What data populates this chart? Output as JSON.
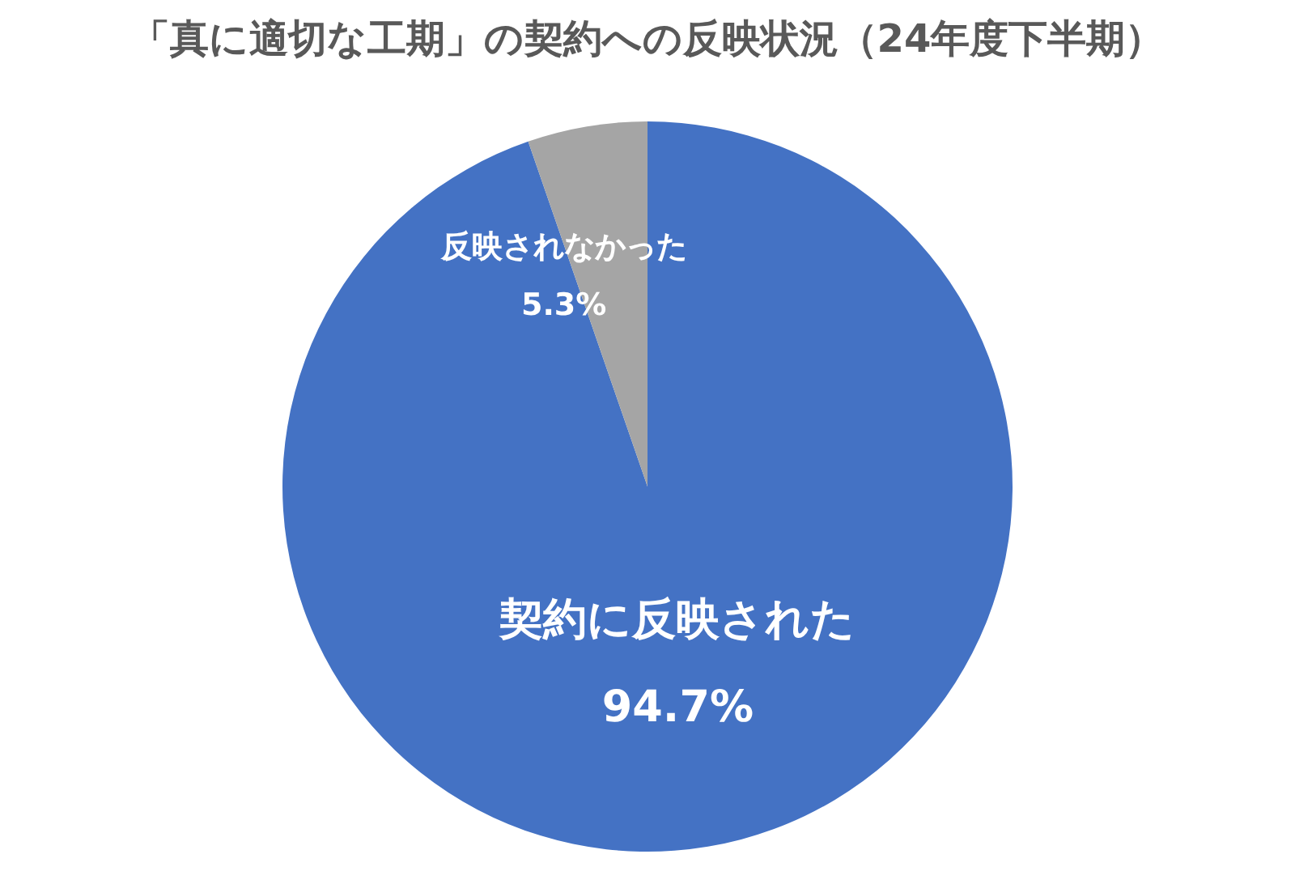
{
  "chart_data": {
    "type": "pie",
    "title": "「真に適切な工期」の契約への反映状況（24年度下半期）",
    "categories": [
      "契約に反映された",
      "反映されなかった"
    ],
    "values": [
      94.7,
      5.3
    ],
    "colors": [
      "#4472c4",
      "#a5a5a5"
    ],
    "value_labels": [
      "94.7%",
      "5.3%"
    ],
    "legend": false
  }
}
